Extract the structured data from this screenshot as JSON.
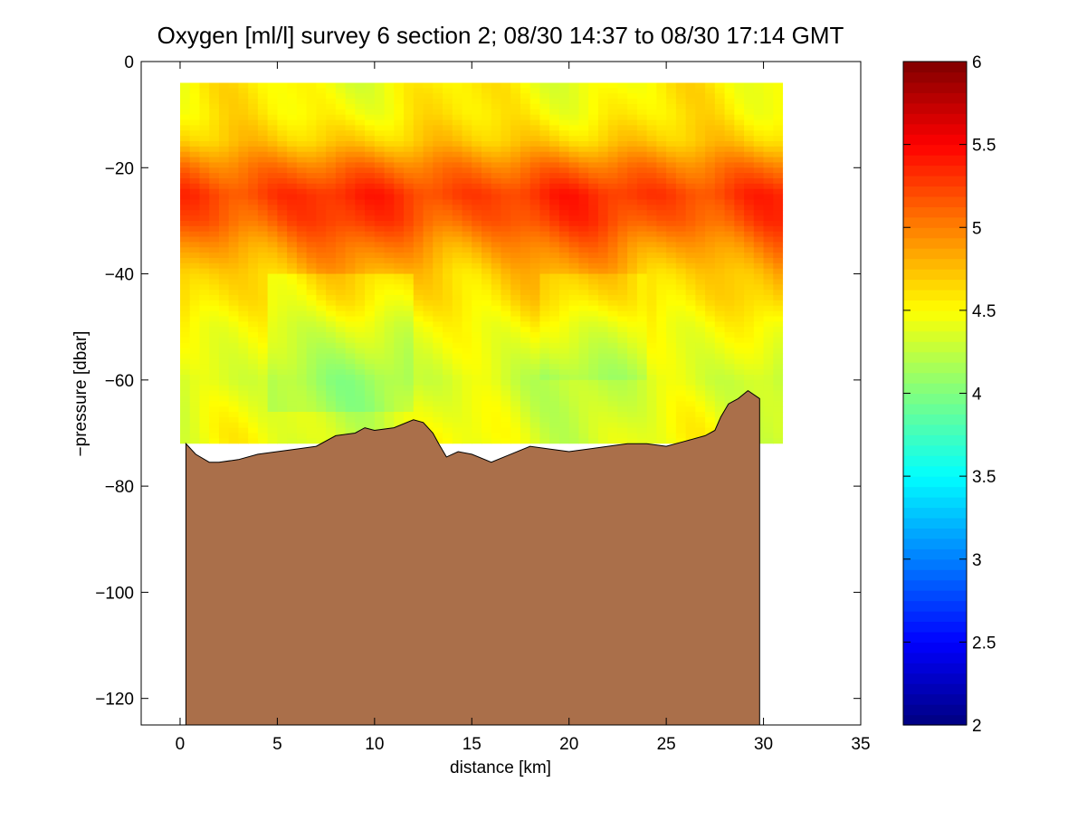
{
  "chart_data": {
    "type": "heatmap",
    "title": "Oxygen [ml/l] survey 6 section 2; 08/30 14:37 to 08/30 17:14 GMT",
    "xlabel": "distance [km]",
    "ylabel": "−pressure [dbar]",
    "xlim": [
      -2,
      35
    ],
    "ylim": [
      -125,
      0
    ],
    "x_ticks": [
      0,
      5,
      10,
      15,
      20,
      25,
      30,
      35
    ],
    "x_tick_labels": [
      "0",
      "5",
      "10",
      "15",
      "20",
      "25",
      "30",
      "35"
    ],
    "y_ticks": [
      0,
      -20,
      -40,
      -60,
      -80,
      -100,
      -120
    ],
    "y_tick_labels": [
      "0",
      "−20",
      "−40",
      "−60",
      "−80",
      "−100",
      "−120"
    ],
    "grid": false,
    "colorbar": {
      "range": [
        2,
        6
      ],
      "ticks": [
        2,
        2.5,
        3,
        3.5,
        4,
        4.5,
        5,
        5.5,
        6
      ],
      "tick_labels": [
        "2",
        "2.5",
        "3",
        "3.5",
        "4",
        "4.5",
        "5",
        "5.5",
        "6"
      ],
      "colormap": "jet"
    },
    "bottom_color": "#AA6F4A",
    "bathymetry": {
      "distance_km": [
        0.3,
        0.8,
        1.5,
        2.0,
        3.0,
        4.0,
        5.0,
        6.0,
        7.0,
        8.0,
        9.0,
        9.5,
        10.0,
        11.0,
        12.0,
        12.5,
        13.0,
        13.3,
        13.7,
        14.3,
        15.0,
        16.0,
        17.0,
        18.0,
        19.0,
        20.0,
        21.0,
        22.0,
        23.0,
        24.0,
        25.0,
        26.0,
        27.0,
        27.5,
        27.8,
        28.2,
        28.7,
        29.2,
        29.8
      ],
      "pressure_dbar": [
        -72,
        -74,
        -75.5,
        -75.5,
        -75,
        -74,
        -73.5,
        -73,
        -72.5,
        -70.5,
        -70,
        -69,
        -69.5,
        -69,
        -67.5,
        -68,
        -70,
        -72,
        -74.5,
        -73.5,
        -74,
        -75.5,
        -74,
        -72.5,
        -73,
        -73.5,
        -73,
        -72.5,
        -72,
        -72,
        -72.5,
        -71.5,
        -70.5,
        -69.5,
        -67,
        -64.5,
        -63.5,
        -62,
        -63.5
      ]
    },
    "data_coverage": {
      "x_range_km": [
        0,
        31
      ],
      "surface_depth_dbar": -4
    },
    "oxygen_profile_by_depth": {
      "pressure_dbar": [
        -4,
        -10,
        -15,
        -20,
        -25,
        -30,
        -35,
        -40,
        -45,
        -50,
        -55,
        -60,
        -65,
        -70
      ],
      "oxygen_ml_l": [
        4.5,
        4.55,
        4.7,
        5.05,
        5.3,
        5.2,
        4.95,
        4.75,
        4.65,
        4.5,
        4.4,
        4.3,
        4.35,
        4.4
      ]
    }
  }
}
